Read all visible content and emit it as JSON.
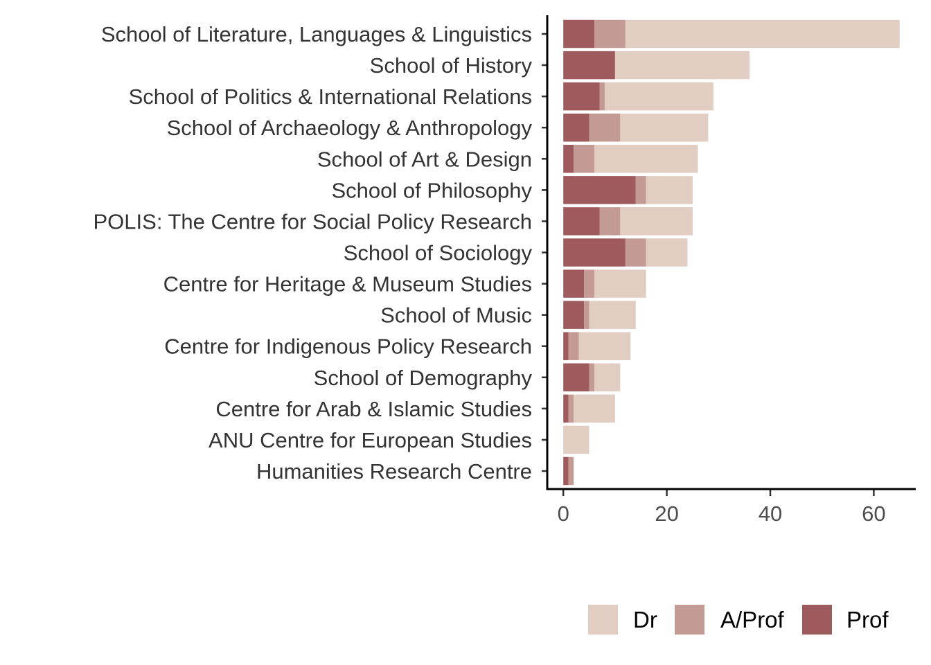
{
  "chart_data": {
    "type": "bar",
    "orientation": "horizontal",
    "stacked": true,
    "categories": [
      "School of Literature, Languages & Linguistics",
      "School of History",
      "School of Politics & International Relations",
      "School of Archaeology & Anthropology",
      "School of Art & Design",
      "School of Philosophy",
      "POLIS: The Centre for Social Policy Research",
      "School of Sociology",
      "Centre for Heritage & Museum Studies",
      "School of Music",
      "Centre for Indigenous Policy Research",
      "School of Demography",
      "Centre for Arab & Islamic Studies",
      "ANU Centre for European Studies",
      "Humanities Research Centre"
    ],
    "series": [
      {
        "name": "Prof",
        "color": "#9e5a5c",
        "values": [
          6,
          10,
          7,
          5,
          2,
          14,
          7,
          12,
          4,
          4,
          1,
          5,
          1,
          0,
          1
        ]
      },
      {
        "name": "A/Prof",
        "color": "#c39b94",
        "values": [
          6,
          0,
          1,
          6,
          4,
          2,
          4,
          4,
          2,
          1,
          2,
          1,
          1,
          0,
          1
        ]
      },
      {
        "name": "Dr",
        "color": "#e2cdc2",
        "values": [
          53,
          26,
          21,
          17,
          20,
          9,
          14,
          8,
          10,
          9,
          10,
          5,
          8,
          5,
          0
        ]
      }
    ],
    "x_ticks": [
      0,
      20,
      40,
      60
    ],
    "xlim": [
      -3.2,
      68.2
    ],
    "legend": {
      "position": "bottom-right",
      "order": [
        "Dr",
        "A/Prof",
        "Prof"
      ]
    },
    "title": "",
    "xlabel": "",
    "ylabel": ""
  }
}
